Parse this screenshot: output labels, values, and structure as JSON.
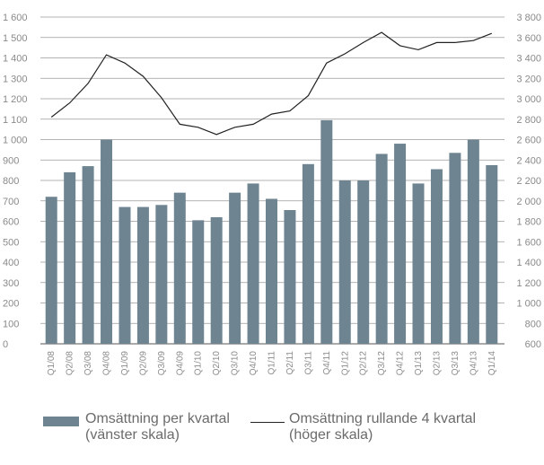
{
  "chart_data": {
    "type": "bar",
    "categories": [
      "Q1/08",
      "Q2/08",
      "Q3/08",
      "Q4/08",
      "Q1/09",
      "Q2/09",
      "Q3/09",
      "Q4/09",
      "Q1/10",
      "Q2/10",
      "Q3/10",
      "Q4/10",
      "Q1/11",
      "Q2/11",
      "Q3/11",
      "Q4/11",
      "Q1/12",
      "Q2/12",
      "Q3/12",
      "Q4/12",
      "Q1/13",
      "Q2/13",
      "Q3/13",
      "Q4/13",
      "Q1/14"
    ],
    "series": [
      {
        "name": "Omsättning per kvartal",
        "type": "bar",
        "axis": "left",
        "color": "#6e8591",
        "values": [
          720,
          840,
          870,
          1000,
          670,
          670,
          680,
          740,
          605,
          620,
          740,
          785,
          710,
          655,
          880,
          1095,
          800,
          800,
          930,
          980,
          785,
          855,
          935,
          1000,
          875
        ]
      },
      {
        "name": "Omsättning rullande 4 kvartal",
        "type": "line",
        "axis": "right",
        "color": "#222222",
        "values": [
          2820,
          2960,
          3150,
          3430,
          3350,
          3220,
          3010,
          2750,
          2720,
          2650,
          2720,
          2750,
          2850,
          2880,
          3030,
          3350,
          3440,
          3550,
          3650,
          3520,
          3480,
          3550,
          3550,
          3570,
          3640
        ]
      }
    ],
    "y_left": {
      "lim": [
        0,
        1600
      ],
      "step": 100,
      "ticks": [
        "0",
        "100",
        "200",
        "300",
        "400",
        "500",
        "600",
        "700",
        "800",
        "900",
        "1 000",
        "1 100",
        "1 200",
        "1 300",
        "1 400",
        "1 500",
        "1 600"
      ]
    },
    "y_right": {
      "lim": [
        600,
        3800
      ],
      "step": 200,
      "ticks": [
        "600",
        "800",
        "1 000",
        "1 200",
        "1 400",
        "1 600",
        "1 800",
        "2 000",
        "2 200",
        "2 400",
        "2 600",
        "2 800",
        "3 000",
        "3 200",
        "3 400",
        "3 600",
        "3 800"
      ]
    },
    "grid": true
  },
  "legend": {
    "bar_line1": "Omsättning per kvartal",
    "bar_line2": "(vänster skala)",
    "line_line1": "Omsättning rullande 4 kvartal",
    "line_line2": "(höger skala)"
  }
}
